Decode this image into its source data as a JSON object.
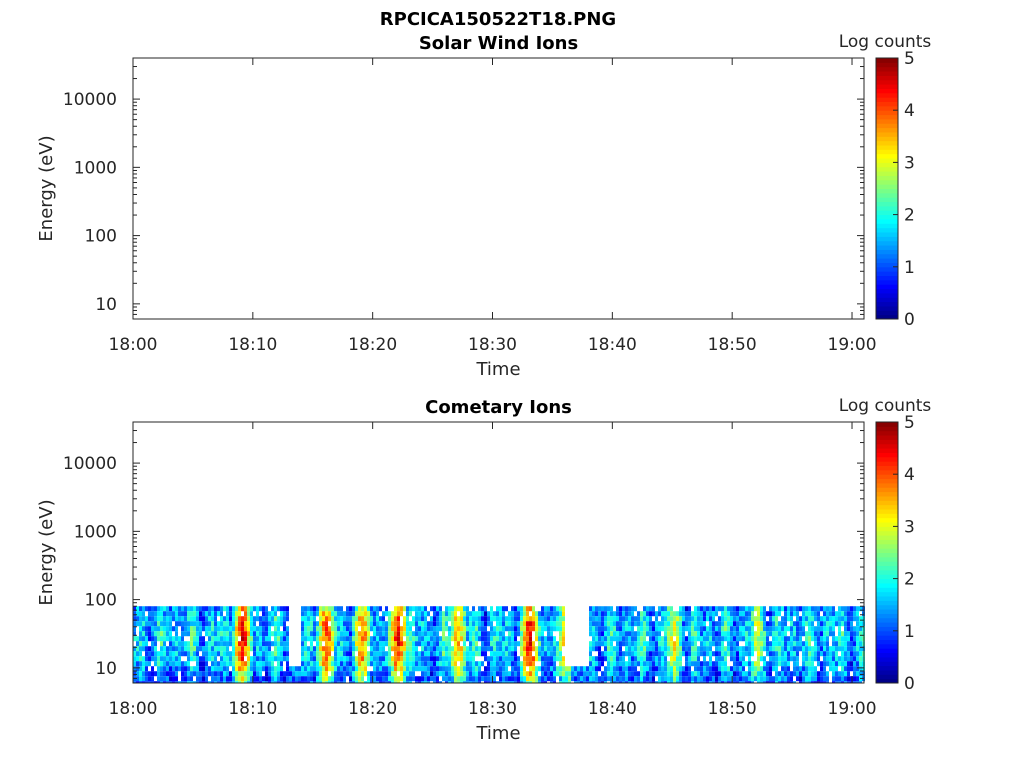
{
  "figure_title": "RPCICA150522T18.PNG",
  "chart_data": [
    {
      "type": "heatmap",
      "title": "Solar Wind Ions",
      "xlabel": "Time",
      "ylabel": "Energy (eV)",
      "x_ticks": [
        "18:00",
        "18:10",
        "18:20",
        "18:30",
        "18:40",
        "18:50",
        "19:00"
      ],
      "xlim": [
        "18:00",
        "19:01"
      ],
      "y_scale": "log",
      "y_ticks": [
        "10",
        "100",
        "1000",
        "10000"
      ],
      "ylim": [
        6,
        40000
      ],
      "colorbar": {
        "label": "Log counts",
        "ticks": [
          "0",
          "1",
          "2",
          "3",
          "4",
          "5"
        ],
        "range": [
          0,
          5
        ],
        "colormap": "jet"
      },
      "data_description": "no counts"
    },
    {
      "type": "heatmap",
      "title": "Cometary Ions",
      "xlabel": "Time",
      "ylabel": "Energy (eV)",
      "x_ticks": [
        "18:00",
        "18:10",
        "18:20",
        "18:30",
        "18:40",
        "18:50",
        "19:00"
      ],
      "xlim": [
        "18:00",
        "19:01"
      ],
      "y_scale": "log",
      "y_ticks": [
        "10",
        "100",
        "1000",
        "10000"
      ],
      "ylim": [
        6,
        40000
      ],
      "colorbar": {
        "label": "Log counts",
        "ticks": [
          "0",
          "1",
          "2",
          "3",
          "4",
          "5"
        ],
        "range": [
          0,
          5
        ],
        "colormap": "jet"
      },
      "energy_band_ev": [
        6,
        80
      ],
      "intensity_peaks": [
        {
          "time": "18:09",
          "log_counts": 4.3
        },
        {
          "time": "18:16",
          "log_counts": 4.0
        },
        {
          "time": "18:19",
          "log_counts": 3.8
        },
        {
          "time": "18:22",
          "log_counts": 4.2
        },
        {
          "time": "18:27",
          "log_counts": 3.5
        },
        {
          "time": "18:33",
          "log_counts": 4.4
        },
        {
          "time": "18:36",
          "log_counts": 3.3
        },
        {
          "time": "18:45",
          "log_counts": 3.1
        },
        {
          "time": "18:52",
          "log_counts": 2.9
        }
      ],
      "gaps": [
        [
          "18:13",
          "18:14"
        ],
        [
          "18:36",
          "18:38"
        ]
      ]
    }
  ]
}
